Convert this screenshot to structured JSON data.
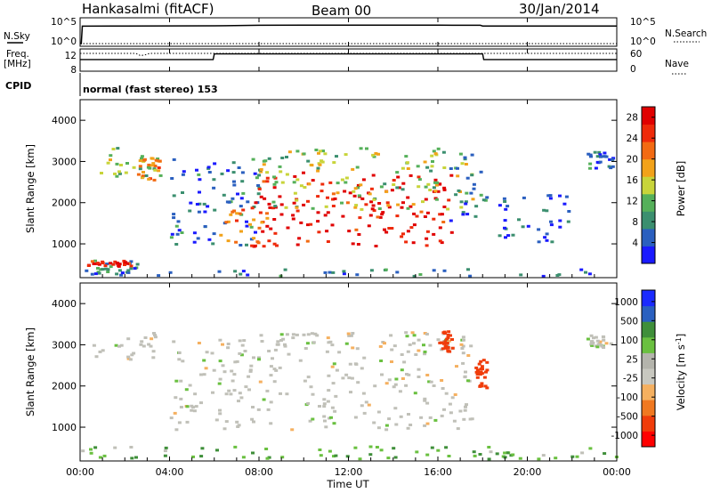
{
  "header": {
    "station": "Hankasalmi (fitACF)",
    "beam": "Beam 00",
    "date": "30/Jan/2014"
  },
  "top_panel": {
    "left_label": "N.Sky",
    "right_label": "N.Search",
    "left_ticks": [
      "10^5",
      "10^0"
    ],
    "right_ticks": [
      "10^5",
      "10^0"
    ]
  },
  "freq_panel": {
    "left_label_1": "Freq.",
    "left_label_2": "[MHz]",
    "left_ticks": [
      "12",
      "8"
    ],
    "right_ticks": [
      "60",
      "0"
    ],
    "right_label": "Nave",
    "cpid_label": "CPID",
    "mode_text": "normal (fast stereo) 153"
  },
  "colors": {
    "power_scale": [
      "#1a1aff",
      "#2a5fbf",
      "#3b8f6f",
      "#55b05a",
      "#c8d43a",
      "#f2a21a",
      "#f26a12",
      "#ee2a0a",
      "#e00000"
    ],
    "velocity_scale": [
      "#ff0000",
      "#f03c0a",
      "#f07820",
      "#f5b060",
      "#c8c8c0",
      "#b4b4ac",
      "#6ac040",
      "#3f8f3a",
      "#2a60c0",
      "#1a2aff"
    ],
    "ground_scatter": "#c0c0b8"
  },
  "chart_data": [
    {
      "type": "line",
      "title": "",
      "xlabel": "",
      "ylabel": "N.Sky",
      "y2label": "N.Search",
      "yscale": "log",
      "ylim": [
        1,
        100000
      ],
      "xlim": [
        0,
        24
      ],
      "series": [
        {
          "name": "N.Sky",
          "x": [
            0.0,
            0.05,
            0.1,
            2,
            4,
            6,
            8,
            10,
            12,
            14,
            16,
            17.9,
            18,
            20,
            22,
            24
          ],
          "values": [
            1,
            1,
            6000,
            6500,
            6800,
            7000,
            9000,
            9500,
            9800,
            9800,
            9500,
            9000,
            6500,
            6500,
            6500,
            6500
          ]
        },
        {
          "name": "N.Search",
          "x": [
            0,
            24
          ],
          "values": [
            1,
            1
          ]
        }
      ]
    },
    {
      "type": "line",
      "title": "",
      "ylabel": "Freq. [MHz]",
      "y2label": "Nave",
      "ylim": [
        8,
        12
      ],
      "y2lim": [
        0,
        60
      ],
      "xlim": [
        0,
        24
      ],
      "series": [
        {
          "name": "Freq.",
          "x": [
            0,
            5.95,
            6.0,
            18.0,
            18.05,
            24
          ],
          "values": [
            10.1,
            10.1,
            11.1,
            11.1,
            10.1,
            10.1
          ]
        },
        {
          "name": "Nave",
          "x": [
            0,
            2.5,
            2.7,
            2.9,
            3.1,
            24
          ],
          "values": [
            48,
            48,
            42,
            44,
            48,
            48
          ]
        }
      ]
    },
    {
      "type": "heatmap",
      "title": "",
      "ylabel": "Slant Range [km]",
      "xlim": [
        0,
        24
      ],
      "ylim": [
        180,
        4500
      ],
      "yticks": [
        "1000",
        "2000",
        "3000",
        "4000"
      ],
      "colorbar_label": "Power [dB]",
      "colorbar_ticks": [
        "4",
        "8",
        "12",
        "16",
        "20",
        "24",
        "28"
      ],
      "zlim": [
        0,
        30
      ],
      "regions": [
        {
          "t0": 0.2,
          "t1": 2.5,
          "r0": 200,
          "r1": 600,
          "power": 8
        },
        {
          "t0": 0.3,
          "t1": 2.3,
          "r0": 400,
          "r1": 550,
          "power": 26
        },
        {
          "t0": 0.5,
          "t1": 3.6,
          "r0": 2600,
          "r1": 3300,
          "power": 12
        },
        {
          "t0": 2.5,
          "t1": 3.5,
          "r0": 2500,
          "r1": 3100,
          "power": 20
        },
        {
          "t0": 4.0,
          "t1": 8.0,
          "r0": 900,
          "r1": 3100,
          "power": 6
        },
        {
          "t0": 6.2,
          "t1": 8.3,
          "r0": 900,
          "r1": 1800,
          "power": 20
        },
        {
          "t0": 7.6,
          "t1": 16.8,
          "r0": 900,
          "r1": 2700,
          "power": 28
        },
        {
          "t0": 7.8,
          "t1": 17.5,
          "r0": 1800,
          "r1": 3300,
          "power": 14
        },
        {
          "t0": 16.5,
          "t1": 18.2,
          "r0": 1500,
          "r1": 3200,
          "power": 6
        },
        {
          "t0": 18.5,
          "t1": 21.8,
          "r0": 1000,
          "r1": 2200,
          "power": 5
        },
        {
          "t0": 22.6,
          "t1": 23.8,
          "r0": 2800,
          "r1": 3200,
          "power": 6
        },
        {
          "t0": 0.0,
          "t1": 24.0,
          "r0": 180,
          "r1": 350,
          "power": 6
        }
      ]
    },
    {
      "type": "heatmap",
      "title": "",
      "xlabel": "Time UT",
      "ylabel": "Slant Range [km]",
      "xlim": [
        0,
        24
      ],
      "ylim": [
        180,
        4500
      ],
      "xticks": [
        "00:00",
        "04:00",
        "08:00",
        "12:00",
        "16:00",
        "20:00",
        "00:00"
      ],
      "yticks": [
        "1000",
        "2000",
        "3000",
        "4000"
      ],
      "colorbar_label": "Velocity [m s^-1]",
      "colorbar_ticks": [
        "1000",
        "500",
        "100",
        "25",
        "-25",
        "-100",
        "-500",
        "-1000"
      ],
      "zlim": [
        -1000,
        1000
      ],
      "regions": [
        {
          "t0": 0.5,
          "t1": 3.6,
          "r0": 2600,
          "r1": 3300,
          "velocity": 0
        },
        {
          "t0": 4.0,
          "t1": 8.0,
          "r0": 900,
          "r1": 3100,
          "velocity": 0
        },
        {
          "t0": 7.6,
          "t1": 17.5,
          "r0": 900,
          "r1": 3300,
          "velocity": 0
        },
        {
          "t0": 16.0,
          "t1": 16.6,
          "r0": 2800,
          "r1": 3300,
          "velocity": -400
        },
        {
          "t0": 17.6,
          "t1": 18.2,
          "r0": 1900,
          "r1": 2600,
          "velocity": -600
        },
        {
          "t0": 0.0,
          "t1": 24.0,
          "r0": 180,
          "r1": 500,
          "velocity": 50
        },
        {
          "t0": 22.6,
          "t1": 23.8,
          "r0": 2900,
          "r1": 3200,
          "velocity": 0
        }
      ]
    }
  ]
}
